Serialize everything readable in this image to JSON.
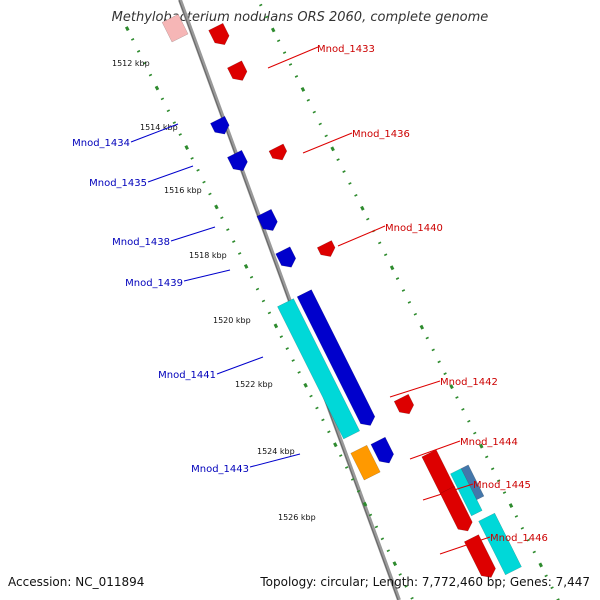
{
  "title": "Methylobacterium nodulans ORS 2060, complete genome",
  "accession": "Accession: NC_011894",
  "summary": "Topology: circular; Length: 7,772,460 bp; Genes: 7,447",
  "colors": {
    "backbone": "#888888",
    "tick": "#2e8b2e",
    "forward_gene": "#dd0000",
    "reverse_gene": "#0000cc",
    "cyan_feature": "#00d8d8",
    "orange_feature": "#ff9900",
    "steel_feature": "#4477aa"
  },
  "kbp_labels": [
    "1512 kbp",
    "1514 kbp",
    "1516 kbp",
    "1518 kbp",
    "1520 kbp",
    "1522 kbp",
    "1524 kbp",
    "1526 kbp"
  ],
  "genes_right": [
    "Mnod_1433",
    "Mnod_1436",
    "Mnod_1440",
    "Mnod_1442",
    "Mnod_1444",
    "Mnod_1445",
    "Mnod_1446"
  ],
  "genes_left": [
    "Mnod_1434",
    "Mnod_1435",
    "Mnod_1438",
    "Mnod_1439",
    "Mnod_1441",
    "Mnod_1443"
  ]
}
